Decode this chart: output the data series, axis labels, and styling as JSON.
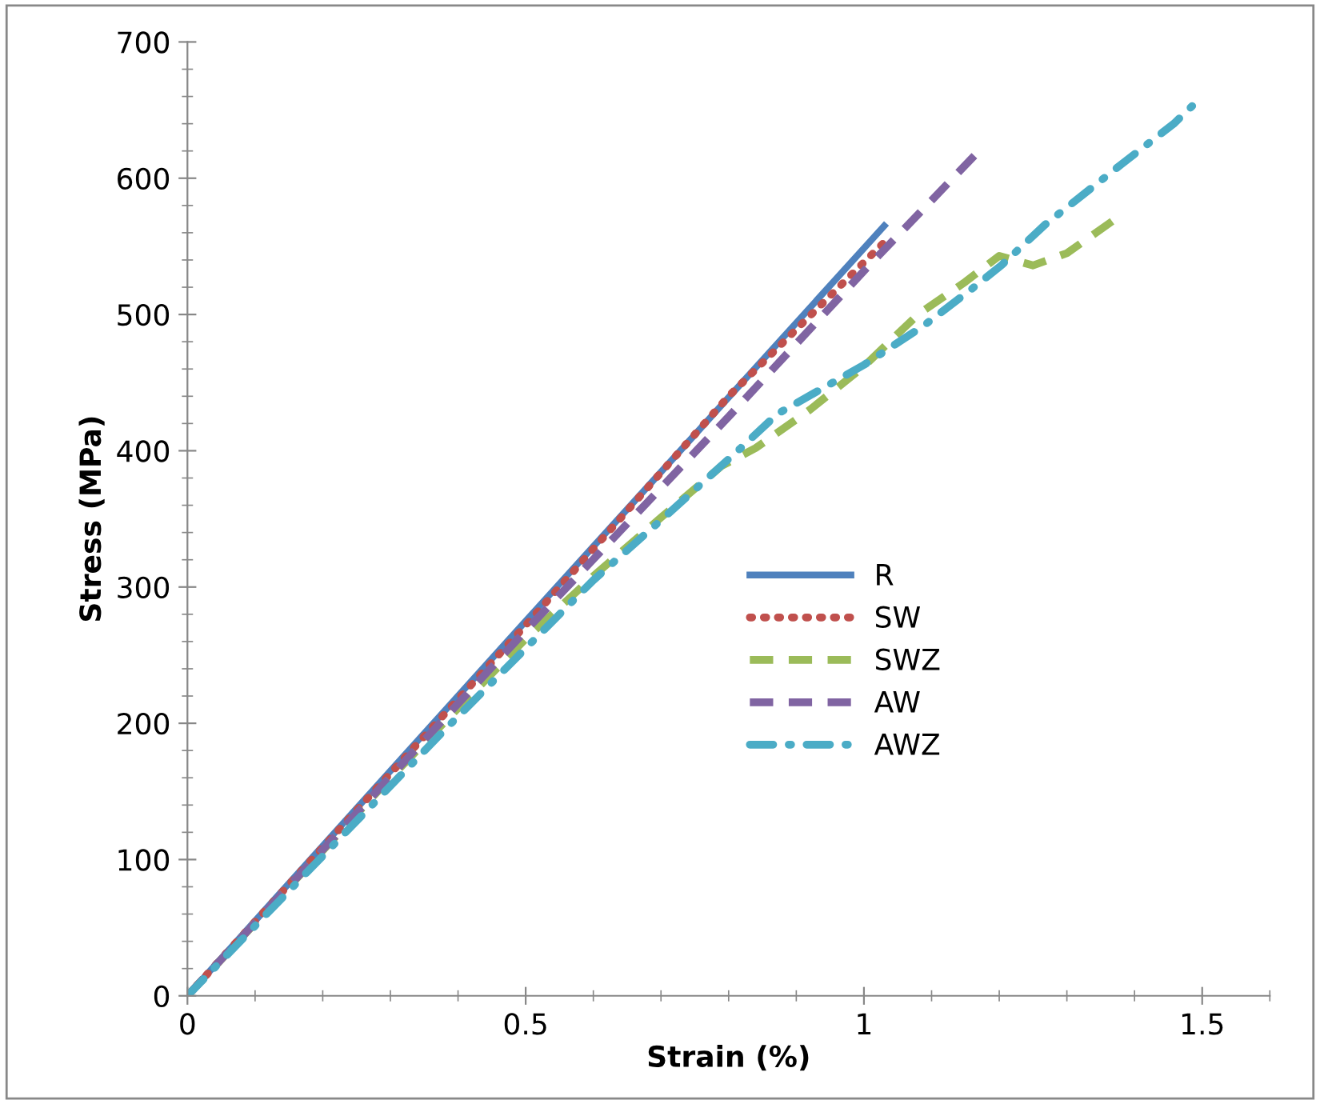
{
  "chart_data": {
    "type": "line",
    "xlabel": "Strain (%)",
    "ylabel": "Stress (MPa)",
    "xlim": [
      0,
      1.6
    ],
    "xticks": [
      0,
      0.5,
      1,
      1.5
    ],
    "ylim": [
      0,
      700
    ],
    "yticks": [
      0,
      100,
      200,
      300,
      400,
      500,
      600,
      700
    ],
    "grid": false,
    "legend": "right",
    "marker": "none",
    "series": [
      {
        "name": "R",
        "color": "#4f81bd",
        "line_style": "solid",
        "x": [
          0,
          0.5,
          1.03
        ],
        "values": [
          0,
          275,
          565
        ]
      },
      {
        "name": "SW",
        "color": "#c0504d",
        "line_style": "dotted",
        "x": [
          0,
          0.5,
          0.8,
          1.03
        ],
        "values": [
          0,
          272,
          440,
          553
        ]
      },
      {
        "name": "SWZ",
        "color": "#9bbb59",
        "line_style": "dashed",
        "x": [
          0,
          0.3,
          0.5,
          0.6,
          0.7,
          0.79,
          0.84,
          0.92,
          1.0,
          1.08,
          1.15,
          1.2,
          1.25,
          1.3,
          1.38
        ],
        "values": [
          0,
          160,
          262,
          308,
          351,
          389,
          402,
          430,
          462,
          500,
          524,
          543,
          536,
          545,
          573
        ]
      },
      {
        "name": "AW",
        "color": "#8064a2",
        "line_style": "dashed",
        "x": [
          0,
          0.5,
          0.8,
          1.0,
          1.17
        ],
        "values": [
          0,
          268,
          425,
          532,
          620
        ]
      },
      {
        "name": "AWZ",
        "color": "#4bacc6",
        "line_style": "dashdot",
        "x": [
          0,
          0.378,
          0.486,
          0.6,
          0.709,
          0.818,
          0.872,
          1.0,
          1.089,
          1.16,
          1.203,
          1.268,
          1.38,
          1.458,
          1.5
        ],
        "values": [
          0,
          194,
          248,
          305,
          353,
          402,
          427,
          463,
          492,
          519,
          536,
          566,
          610,
          640,
          660
        ]
      }
    ]
  }
}
